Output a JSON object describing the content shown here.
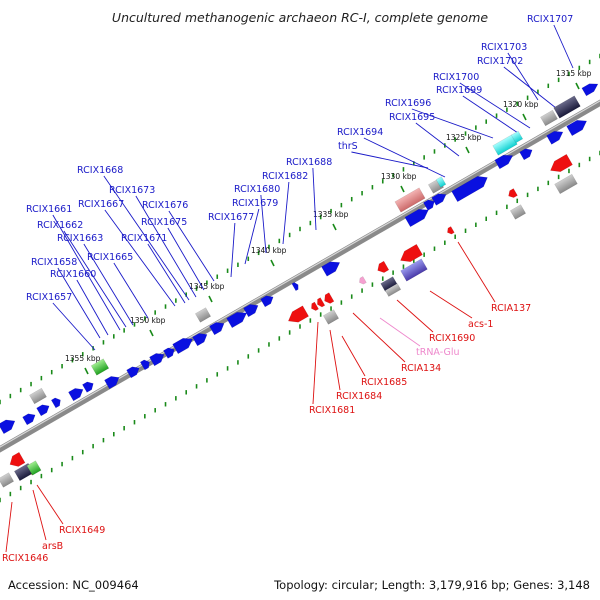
{
  "title": "Uncultured methanogenic archaeon RC-I, complete genome",
  "footer": {
    "accession": "Accession: NC_009464",
    "summary": "Topology: circular; Length: 3,179,916 bp; Genes: 3,148"
  },
  "colors": {
    "forward_gene": "#0a10e0",
    "reverse_gene": "#ee1010",
    "cds_label_forward": "#1a1ac8",
    "cds_label_reverse": "#dd1111",
    "trna_label": "#ee88cc",
    "backbone": "#8a8a8a",
    "tick": "#1a8a1a"
  },
  "scale": {
    "ticks": [
      "1315 kbp",
      "1320 kbp",
      "1325 kbp",
      "1330 kbp",
      "1335 kbp",
      "1340 kbp",
      "1345 kbp",
      "1350 kbp",
      "1355 kbp"
    ]
  },
  "labels_forward": [
    "RCIX1707",
    "RCIX1703",
    "RCIX1702",
    "RCIX1700",
    "RCIX1699",
    "RCIX1696",
    "RCIX1695",
    "RCIX1694",
    "thrS",
    "RCIX1688",
    "RCIX1682",
    "RCIX1680",
    "RCIX1679",
    "RCIX1677",
    "RCIX1676",
    "RCIX1675",
    "RCIX1673",
    "RCIX1671",
    "RCIX1668",
    "RCIX1667",
    "RCIX1665",
    "RCIX1663",
    "RCIX1662",
    "RCIX1661",
    "RCIX1660",
    "RCIX1658",
    "RCIX1657"
  ],
  "labels_reverse": [
    "RCIA137",
    "acs-1",
    "RCIX1690",
    "tRNA-Glu",
    "RCIA134",
    "RCIX1685",
    "RCIX1684",
    "RCIX1681",
    "RCIX1649",
    "arsB",
    "RCIX1646"
  ]
}
